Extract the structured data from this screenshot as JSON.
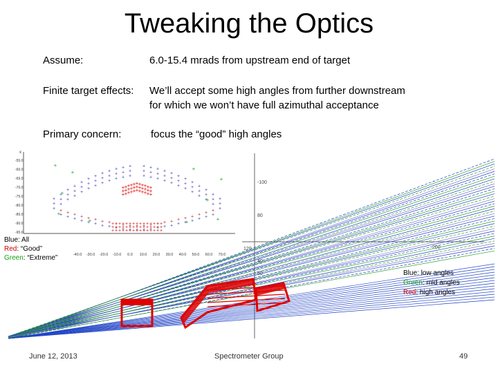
{
  "title": "Tweaking the Optics",
  "rows": [
    {
      "label": "Assume:",
      "text": "6.0-15.4 mrads from upstream end of target"
    },
    {
      "label": "Finite target effects:",
      "text": "We’ll accept some high angles from further downstream",
      "text2": "for which we won’t have full azimuthal acceptance"
    },
    {
      "label": "Primary concern:",
      "text": "focus the “good” high angles"
    }
  ],
  "legend_left": {
    "blue": "Blue: All",
    "red_word": "Red",
    "red_rest": ": “Good”",
    "green_word": "Green",
    "green_rest": ": “Extreme”"
  },
  "legend_right": {
    "blue": "Blue: low angles",
    "green_word": "Green",
    "green_rest": ": mid angles",
    "red_word": "Red",
    "red_rest": ": high angles"
  },
  "scatter_plot": {
    "x_ticks": [
      "-40.0",
      "-30.0",
      "-20.0",
      "-10.0",
      "0.0",
      "10.0",
      "20.0",
      "30.0",
      "40.0",
      "50.0",
      "60.0",
      "70.0"
    ],
    "y_ticks": [
      "-55.0",
      "-60.0",
      "-65.0",
      "-70.0",
      "-75.0",
      "-80.0",
      "-85.0",
      "-90.0",
      "-95.0"
    ],
    "x_axis_letter": "x"
  },
  "ray_plot": {
    "labels": [
      "-100",
      "80",
      "60",
      "40",
      "120",
      "200"
    ],
    "colors": {
      "blue": "#1f3fbf",
      "green": "#2aa02a",
      "red": "#e00000"
    }
  },
  "footer": {
    "date": "June 12, 2013",
    "group": "Spectrometer Group",
    "page": "49"
  }
}
